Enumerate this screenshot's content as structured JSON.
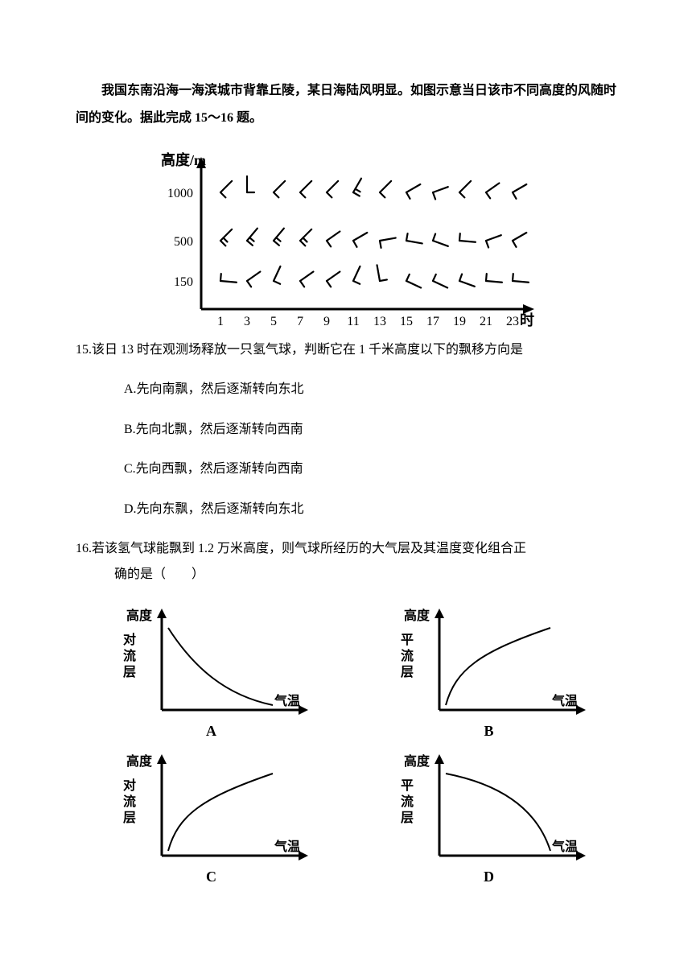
{
  "intro": "我国东南沿海一海滨城市背靠丘陵，某日海陆风明显。如图示意当日该市不同高度的风随时间的变化。据此完成 15～16 题。",
  "wind_chart": {
    "y_label": "高度/m",
    "x_label": "时",
    "y_ticks": [
      1000,
      500,
      150
    ],
    "x_ticks": [
      1,
      3,
      5,
      7,
      9,
      11,
      13,
      15,
      17,
      19,
      21,
      23
    ],
    "axis_color": "#000000",
    "background": "#ffffff",
    "barbs": {
      "1000": [
        {
          "dir": 45,
          "feather": 135
        },
        {
          "dir": 0,
          "feather": 90
        },
        {
          "dir": 45,
          "feather": 135
        },
        {
          "dir": 45,
          "feather": 135
        },
        {
          "dir": 45,
          "feather": 135
        },
        {
          "dir": 30,
          "feather": 120,
          "extra": true
        },
        {
          "dir": 45,
          "feather": 135
        },
        {
          "dir": 60,
          "feather": 150
        },
        {
          "dir": 70,
          "feather": 160
        },
        {
          "dir": 45,
          "feather": 135
        },
        {
          "dir": 55,
          "feather": 145
        },
        {
          "dir": 60,
          "feather": 150
        }
      ],
      "500": [
        {
          "dir": 45,
          "feather": 135,
          "extra": true
        },
        {
          "dir": 40,
          "feather": 130,
          "extra": true
        },
        {
          "dir": 40,
          "feather": 130,
          "extra": true
        },
        {
          "dir": 45,
          "feather": 135,
          "extra": true
        },
        {
          "dir": 55,
          "feather": 145
        },
        {
          "dir": 60,
          "feather": 150
        },
        {
          "dir": 80,
          "feather": 170
        },
        {
          "dir": 100,
          "feather": 10
        },
        {
          "dir": 110,
          "feather": 20
        },
        {
          "dir": 95,
          "feather": 5
        },
        {
          "dir": 70,
          "feather": 160
        },
        {
          "dir": 60,
          "feather": 150
        }
      ],
      "150": [
        {
          "dir": 95,
          "feather": 5
        },
        {
          "dir": 55,
          "feather": 145
        },
        {
          "dir": 25,
          "feather": 115
        },
        {
          "dir": 55,
          "feather": 145
        },
        {
          "dir": 55,
          "feather": 145
        },
        {
          "dir": 25,
          "feather": 115
        },
        {
          "dir": 350,
          "feather": 80
        },
        {
          "dir": 115,
          "feather": 25
        },
        {
          "dir": 115,
          "feather": 25
        },
        {
          "dir": 110,
          "feather": 20
        },
        {
          "dir": 95,
          "feather": 5
        },
        {
          "dir": 95,
          "feather": 5
        }
      ]
    }
  },
  "q15": {
    "stem": "15.该日 13 时在观测场释放一只氢气球，判断它在 1 千米高度以下的飘移方向是",
    "opts": {
      "A": "A.先向南飘，然后逐渐转向东北",
      "B": "B.先向北飘，然后逐渐转向西南",
      "C": "C.先向西飘，然后逐渐转向西南",
      "D": "D.先向东飘，然后逐渐转向东北"
    }
  },
  "q16": {
    "stem_l1": "16.若该氢气球能飘到 1.2 万米高度，则气球所经历的大气层及其温度变化组合正",
    "stem_l2": "确的是（　　）"
  },
  "mini": {
    "y_label": "高度",
    "y_sub_trop": "对流层",
    "y_sub_strat": "平流层",
    "x_label": "气温",
    "labels": {
      "A": "A",
      "B": "B",
      "C": "C",
      "D": "D"
    },
    "curves": {
      "A": "decreasing_concave",
      "B": "increasing_concave",
      "C": "increasing_concave",
      "D": "decreasing_convex"
    },
    "stroke": "#000000",
    "stroke_width": 2
  }
}
